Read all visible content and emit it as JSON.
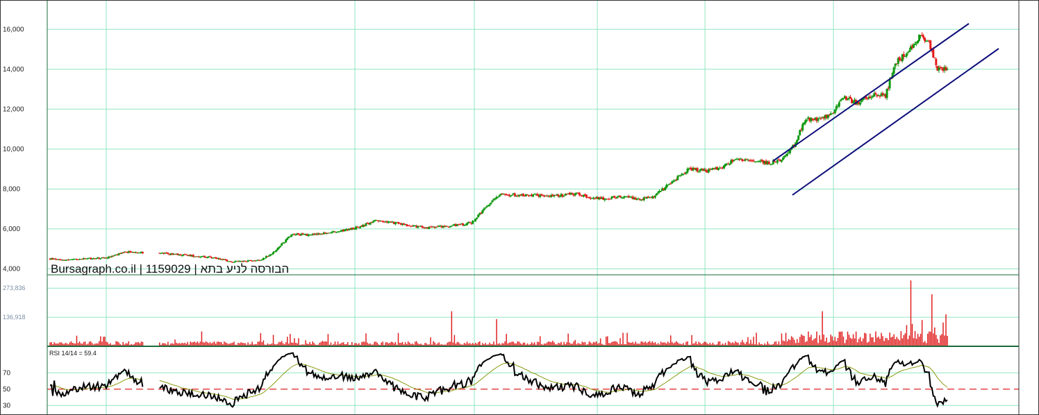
{
  "colors": {
    "up": "#119911",
    "down": "#e41b1b",
    "grid": "#8fe6c0",
    "panel_border": "#1a6a3a",
    "channel": "#0e0e7a",
    "rsi_line": "#000000",
    "rsi_ma": "#8a9a10",
    "rsi_mid": "#dd2222",
    "volume": "#e02020"
  },
  "watermark": "Bursagraph.co.il | 1159029 | הבורסה לניע בתא",
  "chart_data": [
    {
      "type": "candlestick",
      "panel": "price",
      "y_ticks": [
        "16,000",
        "14,000",
        "12,000",
        "10,000",
        "8,000",
        "6,000",
        "4,000"
      ],
      "y_tick_values": [
        16000,
        14000,
        12000,
        10000,
        8000,
        6000,
        4000
      ],
      "ylim": [
        3700,
        17400
      ],
      "grid": true,
      "approx_close_series": [
        {
          "i": 0,
          "v": 4500
        },
        {
          "i": 12,
          "v": 4450
        },
        {
          "i": 40,
          "v": 4550
        },
        {
          "i": 55,
          "v": 4850
        },
        {
          "i": 75,
          "v": 4800
        },
        {
          "i": 95,
          "v": 4700
        },
        {
          "i": 110,
          "v": 4600
        },
        {
          "i": 120,
          "v": 4520
        },
        {
          "i": 130,
          "v": 4350
        },
        {
          "i": 150,
          "v": 4450
        },
        {
          "i": 160,
          "v": 4850
        },
        {
          "i": 172,
          "v": 5750
        },
        {
          "i": 185,
          "v": 5700
        },
        {
          "i": 205,
          "v": 5850
        },
        {
          "i": 220,
          "v": 6100
        },
        {
          "i": 232,
          "v": 6400
        },
        {
          "i": 245,
          "v": 6300
        },
        {
          "i": 258,
          "v": 6150
        },
        {
          "i": 270,
          "v": 6050
        },
        {
          "i": 285,
          "v": 6150
        },
        {
          "i": 300,
          "v": 6300
        },
        {
          "i": 320,
          "v": 7750
        },
        {
          "i": 335,
          "v": 7700
        },
        {
          "i": 345,
          "v": 7700
        },
        {
          "i": 360,
          "v": 7650
        },
        {
          "i": 375,
          "v": 7750
        },
        {
          "i": 390,
          "v": 7500
        },
        {
          "i": 405,
          "v": 7600
        },
        {
          "i": 420,
          "v": 7500
        },
        {
          "i": 430,
          "v": 7600
        },
        {
          "i": 440,
          "v": 8200
        },
        {
          "i": 455,
          "v": 9000
        },
        {
          "i": 468,
          "v": 8900
        },
        {
          "i": 478,
          "v": 9100
        },
        {
          "i": 488,
          "v": 9500
        },
        {
          "i": 500,
          "v": 9400
        },
        {
          "i": 512,
          "v": 9300
        },
        {
          "i": 522,
          "v": 9500
        },
        {
          "i": 530,
          "v": 10200
        },
        {
          "i": 538,
          "v": 11500
        },
        {
          "i": 548,
          "v": 11500
        },
        {
          "i": 556,
          "v": 11700
        },
        {
          "i": 565,
          "v": 12600
        },
        {
          "i": 575,
          "v": 12300
        },
        {
          "i": 585,
          "v": 12700
        },
        {
          "i": 595,
          "v": 12700
        },
        {
          "i": 602,
          "v": 14300
        },
        {
          "i": 612,
          "v": 15000
        },
        {
          "i": 620,
          "v": 15700
        },
        {
          "i": 626,
          "v": 15300
        },
        {
          "i": 632,
          "v": 14000
        }
      ]
    },
    {
      "type": "bar",
      "panel": "volume",
      "y_ticks": [
        "273,836",
        "136,918"
      ],
      "y_tick_values": [
        273836,
        136918
      ],
      "ylim": [
        0,
        330000
      ]
    },
    {
      "type": "line",
      "panel": "rsi",
      "title": "RSI 14/14 = 59.4",
      "y_ticks": [
        "70",
        "50",
        "30"
      ],
      "y_tick_values": [
        70,
        50,
        30
      ],
      "ylim": [
        20,
        100
      ],
      "reference_line": 50
    }
  ]
}
